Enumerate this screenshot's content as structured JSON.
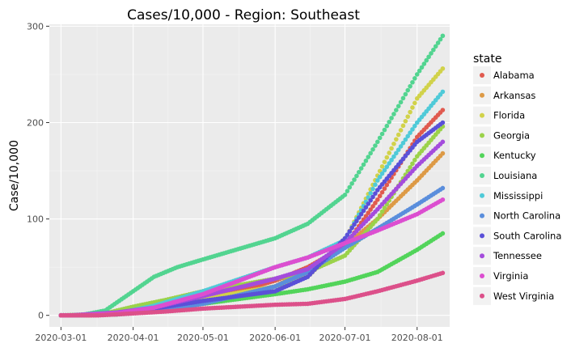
{
  "chart_data": {
    "type": "scatter",
    "title": "Cases/10,000 - Region: Southeast",
    "xlabel": "",
    "ylabel": "Case/10,000",
    "x_ticks": [
      "2020-03-01",
      "2020-04-01",
      "2020-05-01",
      "2020-06-01",
      "2020-07-01",
      "2020-08-01"
    ],
    "xlim": [
      "2020-02-25",
      "2020-08-15"
    ],
    "y_ticks": [
      0,
      100,
      200,
      300
    ],
    "ylim": [
      -12,
      302
    ],
    "grid": true,
    "legend_title": "state",
    "legend_position": "right",
    "series": [
      {
        "name": "Alabama",
        "color": "#e05a4f",
        "points": [
          [
            "2020-03-13",
            0
          ],
          [
            "2020-03-25",
            1
          ],
          [
            "2020-04-10",
            6
          ],
          [
            "2020-05-01",
            15
          ],
          [
            "2020-06-01",
            36
          ],
          [
            "2020-06-15",
            50
          ],
          [
            "2020-07-01",
            72
          ],
          [
            "2020-07-15",
            120
          ],
          [
            "2020-08-01",
            185
          ],
          [
            "2020-08-12",
            213
          ]
        ]
      },
      {
        "name": "Arkansas",
        "color": "#dd9a46",
        "points": [
          [
            "2020-03-12",
            0
          ],
          [
            "2020-03-25",
            1
          ],
          [
            "2020-04-10",
            4
          ],
          [
            "2020-05-01",
            12
          ],
          [
            "2020-06-01",
            30
          ],
          [
            "2020-06-15",
            48
          ],
          [
            "2020-07-01",
            72
          ],
          [
            "2020-07-15",
            100
          ],
          [
            "2020-08-01",
            140
          ],
          [
            "2020-08-12",
            168
          ]
        ]
      },
      {
        "name": "Florida",
        "color": "#d1d24a",
        "points": [
          [
            "2020-03-02",
            0
          ],
          [
            "2020-03-15",
            1
          ],
          [
            "2020-04-01",
            4
          ],
          [
            "2020-04-15",
            10
          ],
          [
            "2020-05-01",
            17
          ],
          [
            "2020-06-01",
            30
          ],
          [
            "2020-06-15",
            40
          ],
          [
            "2020-07-01",
            78
          ],
          [
            "2020-07-15",
            145
          ],
          [
            "2020-08-01",
            225
          ],
          [
            "2020-08-12",
            256
          ]
        ]
      },
      {
        "name": "Georgia",
        "color": "#9bd24a",
        "points": [
          [
            "2020-03-03",
            0
          ],
          [
            "2020-03-20",
            2
          ],
          [
            "2020-04-01",
            9
          ],
          [
            "2020-04-15",
            16
          ],
          [
            "2020-05-01",
            25
          ],
          [
            "2020-06-01",
            38
          ],
          [
            "2020-06-15",
            45
          ],
          [
            "2020-07-01",
            62
          ],
          [
            "2020-07-15",
            100
          ],
          [
            "2020-08-01",
            165
          ],
          [
            "2020-08-12",
            196
          ]
        ]
      },
      {
        "name": "Kentucky",
        "color": "#52d45a",
        "points": [
          [
            "2020-03-07",
            0
          ],
          [
            "2020-03-25",
            1
          ],
          [
            "2020-04-10",
            5
          ],
          [
            "2020-05-01",
            12
          ],
          [
            "2020-06-01",
            22
          ],
          [
            "2020-06-15",
            27
          ],
          [
            "2020-07-01",
            35
          ],
          [
            "2020-07-15",
            45
          ],
          [
            "2020-08-01",
            68
          ],
          [
            "2020-08-12",
            85
          ]
        ]
      },
      {
        "name": "Louisiana",
        "color": "#52d490",
        "points": [
          [
            "2020-03-09",
            0
          ],
          [
            "2020-03-20",
            5
          ],
          [
            "2020-04-01",
            25
          ],
          [
            "2020-04-10",
            40
          ],
          [
            "2020-04-20",
            50
          ],
          [
            "2020-05-01",
            58
          ],
          [
            "2020-06-01",
            80
          ],
          [
            "2020-06-15",
            95
          ],
          [
            "2020-07-01",
            125
          ],
          [
            "2020-07-15",
            180
          ],
          [
            "2020-08-01",
            250
          ],
          [
            "2020-08-12",
            290
          ]
        ]
      },
      {
        "name": "Mississippi",
        "color": "#4fcad8",
        "points": [
          [
            "2020-03-11",
            0
          ],
          [
            "2020-03-25",
            2
          ],
          [
            "2020-04-10",
            10
          ],
          [
            "2020-05-01",
            25
          ],
          [
            "2020-06-01",
            50
          ],
          [
            "2020-06-15",
            60
          ],
          [
            "2020-07-01",
            78
          ],
          [
            "2020-07-15",
            140
          ],
          [
            "2020-08-01",
            200
          ],
          [
            "2020-08-12",
            232
          ]
        ]
      },
      {
        "name": "North Carolina",
        "color": "#5a8edc",
        "points": [
          [
            "2020-03-03",
            0
          ],
          [
            "2020-03-25",
            1
          ],
          [
            "2020-04-10",
            4
          ],
          [
            "2020-05-01",
            12
          ],
          [
            "2020-06-01",
            30
          ],
          [
            "2020-06-15",
            45
          ],
          [
            "2020-07-01",
            70
          ],
          [
            "2020-07-15",
            90
          ],
          [
            "2020-08-01",
            115
          ],
          [
            "2020-08-12",
            132
          ]
        ]
      },
      {
        "name": "South Carolina",
        "color": "#5a50d8",
        "points": [
          [
            "2020-03-06",
            0
          ],
          [
            "2020-03-25",
            2
          ],
          [
            "2020-04-10",
            7
          ],
          [
            "2020-05-01",
            15
          ],
          [
            "2020-06-01",
            25
          ],
          [
            "2020-06-15",
            40
          ],
          [
            "2020-07-01",
            80
          ],
          [
            "2020-07-15",
            130
          ],
          [
            "2020-08-01",
            180
          ],
          [
            "2020-08-12",
            200
          ]
        ]
      },
      {
        "name": "Tennessee",
        "color": "#a44cdc",
        "points": [
          [
            "2020-03-05",
            0
          ],
          [
            "2020-03-25",
            3
          ],
          [
            "2020-04-10",
            8
          ],
          [
            "2020-05-01",
            20
          ],
          [
            "2020-06-01",
            38
          ],
          [
            "2020-06-15",
            48
          ],
          [
            "2020-07-01",
            75
          ],
          [
            "2020-07-15",
            110
          ],
          [
            "2020-08-01",
            155
          ],
          [
            "2020-08-12",
            180
          ]
        ]
      },
      {
        "name": "Virginia",
        "color": "#dc4ed0",
        "points": [
          [
            "2020-03-07",
            0
          ],
          [
            "2020-03-25",
            2
          ],
          [
            "2020-04-10",
            8
          ],
          [
            "2020-05-01",
            22
          ],
          [
            "2020-06-01",
            50
          ],
          [
            "2020-06-15",
            60
          ],
          [
            "2020-07-01",
            75
          ],
          [
            "2020-07-15",
            88
          ],
          [
            "2020-08-01",
            105
          ],
          [
            "2020-08-12",
            120
          ]
        ]
      },
      {
        "name": "West Virginia",
        "color": "#dc508a",
        "points": [
          [
            "2020-03-17",
            0
          ],
          [
            "2020-04-01",
            2
          ],
          [
            "2020-04-15",
            4
          ],
          [
            "2020-05-01",
            7
          ],
          [
            "2020-06-01",
            11
          ],
          [
            "2020-06-15",
            12
          ],
          [
            "2020-07-01",
            17
          ],
          [
            "2020-07-15",
            25
          ],
          [
            "2020-08-01",
            36
          ],
          [
            "2020-08-12",
            44
          ]
        ]
      }
    ]
  }
}
